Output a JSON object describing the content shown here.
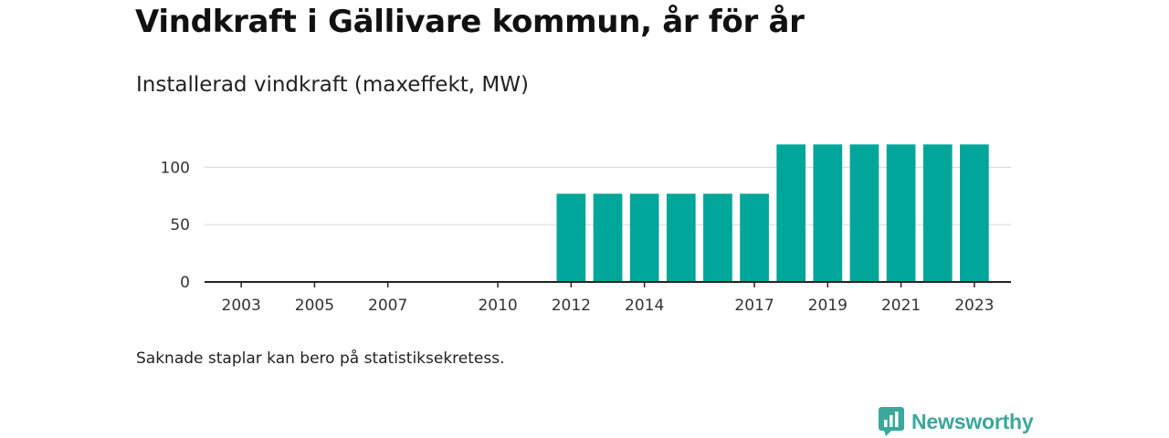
{
  "title": "Vindkraft i Gällivare kommun, år för år",
  "subtitle": "Installerad vindkraft (maxeffekt, MW)",
  "note": "Saknade staplar kan bero på statistiksekretess.",
  "brand": {
    "name": "Newsworthy",
    "icon": "newsworthy-logo-icon",
    "color": "#3aa89a"
  },
  "colors": {
    "bar": "#00a699",
    "grid": "#dddddd",
    "axis": "#222222"
  },
  "chart_data": {
    "type": "bar",
    "title": "Vindkraft i Gällivare kommun, år för år",
    "subtitle": "Installerad vindkraft (maxeffekt, MW)",
    "xlabel": "",
    "ylabel": "",
    "ylim": [
      0,
      125
    ],
    "yticks": [
      0,
      50,
      100
    ],
    "grid": true,
    "x_domain": [
      2002,
      2024
    ],
    "xtick_labels": [
      "2003",
      "2005",
      "2007",
      "2010",
      "2012",
      "2014",
      "2017",
      "2019",
      "2021",
      "2023"
    ],
    "categories": [
      "2012",
      "2013",
      "2014",
      "2015",
      "2016",
      "2017",
      "2018",
      "2019",
      "2020",
      "2021",
      "2022",
      "2023"
    ],
    "values": [
      77,
      77,
      77,
      77,
      77,
      77,
      120,
      120,
      120,
      120,
      120,
      120
    ]
  }
}
